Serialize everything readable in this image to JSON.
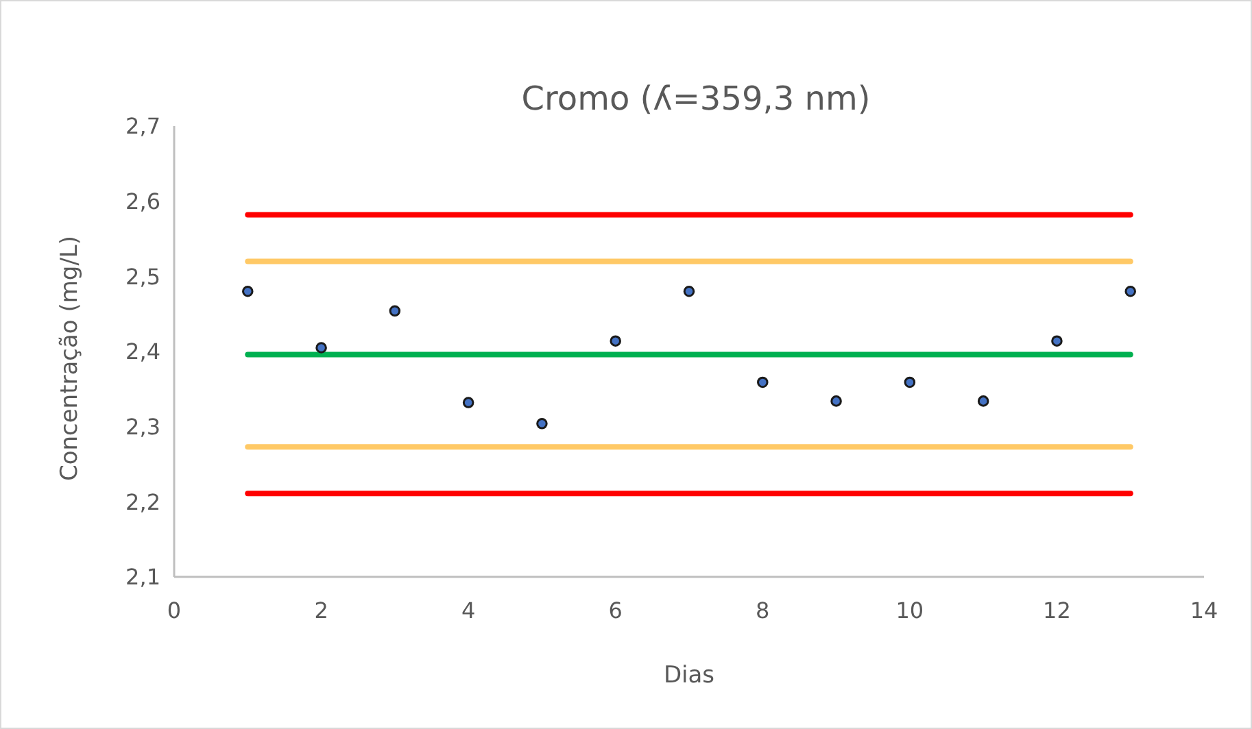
{
  "chart_data": {
    "type": "scatter",
    "title": "Cromo (ʎ=359,3 nm)",
    "xlabel": "Dias",
    "ylabel": "Concentração (mg/L)",
    "x": [
      1,
      2,
      3,
      4,
      5,
      6,
      7,
      8,
      9,
      10,
      11,
      12,
      13
    ],
    "series": [
      {
        "color": "#4472c4",
        "marker": "circle",
        "values": [
          2.48,
          2.405,
          2.454,
          2.332,
          2.304,
          2.414,
          2.48,
          2.359,
          2.334,
          2.359,
          2.334,
          2.414,
          2.48
        ]
      },
      {
        "type": "line",
        "color": "#ff0000",
        "marker": "none",
        "values": [
          2.582,
          2.582,
          2.582,
          2.582,
          2.582,
          2.582,
          2.582,
          2.582,
          2.582,
          2.582,
          2.582,
          2.582,
          2.582
        ]
      },
      {
        "type": "line",
        "color": "#ffc966",
        "marker": "none",
        "values": [
          2.52,
          2.52,
          2.52,
          2.52,
          2.52,
          2.52,
          2.52,
          2.52,
          2.52,
          2.52,
          2.52,
          2.52,
          2.52
        ]
      },
      {
        "type": "line",
        "color": "#00b050",
        "marker": "none",
        "values": [
          2.396,
          2.396,
          2.396,
          2.396,
          2.396,
          2.396,
          2.396,
          2.396,
          2.396,
          2.396,
          2.396,
          2.396,
          2.396
        ]
      },
      {
        "type": "line",
        "color": "#ffc966",
        "marker": "none",
        "values": [
          2.273,
          2.273,
          2.273,
          2.273,
          2.273,
          2.273,
          2.273,
          2.273,
          2.273,
          2.273,
          2.273,
          2.273,
          2.273
        ]
      },
      {
        "type": "line",
        "color": "#ff0000",
        "marker": "none",
        "values": [
          2.211,
          2.211,
          2.211,
          2.211,
          2.211,
          2.211,
          2.211,
          2.211,
          2.211,
          2.211,
          2.211,
          2.211,
          2.211
        ]
      }
    ],
    "xlim": [
      0,
      14
    ],
    "xticks": [
      0,
      2,
      4,
      6,
      8,
      10,
      12,
      14
    ],
    "ylim": [
      2.1,
      2.7
    ],
    "yticks": [
      {
        "value": 2.1,
        "label": "2,1"
      },
      {
        "value": 2.2,
        "label": "2,2"
      },
      {
        "value": 2.3,
        "label": "2,3"
      },
      {
        "value": 2.4,
        "label": "2,4"
      },
      {
        "value": 2.5,
        "label": "2,5"
      },
      {
        "value": 2.6,
        "label": "2,6"
      },
      {
        "value": 2.7,
        "label": "2,7"
      }
    ],
    "grid": false
  }
}
